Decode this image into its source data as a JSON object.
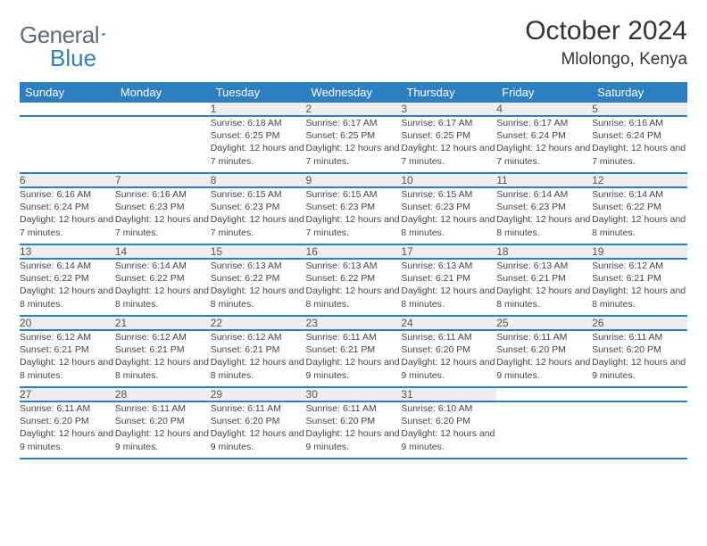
{
  "logo": {
    "text_a": "General",
    "text_b": "Blue",
    "tri_color": "#2d7fc1",
    "text_a_color": "#5d6b74"
  },
  "header": {
    "month_year": "October 2024",
    "location": "Mlolongo, Kenya"
  },
  "style": {
    "header_bg": "#2d7fc1",
    "header_text": "#ffffff",
    "daynum_bg": "#eceef0",
    "body_text": "#444444",
    "rule_color": "#2d7fc1",
    "page_bg": "#ffffff",
    "title_fontsize": 30,
    "loc_fontsize": 19,
    "dayhead_fontsize": 13,
    "cell_fontsize": 10.5
  },
  "weekdays": [
    "Sunday",
    "Monday",
    "Tuesday",
    "Wednesday",
    "Thursday",
    "Friday",
    "Saturday"
  ],
  "weeks": [
    {
      "nums": [
        "",
        "",
        "1",
        "2",
        "3",
        "4",
        "5"
      ],
      "cells": [
        null,
        null,
        {
          "sunrise": "6:18 AM",
          "sunset": "6:25 PM",
          "daylight": "12 hours and 7 minutes."
        },
        {
          "sunrise": "6:17 AM",
          "sunset": "6:25 PM",
          "daylight": "12 hours and 7 minutes."
        },
        {
          "sunrise": "6:17 AM",
          "sunset": "6:25 PM",
          "daylight": "12 hours and 7 minutes."
        },
        {
          "sunrise": "6:17 AM",
          "sunset": "6:24 PM",
          "daylight": "12 hours and 7 minutes."
        },
        {
          "sunrise": "6:16 AM",
          "sunset": "6:24 PM",
          "daylight": "12 hours and 7 minutes."
        }
      ]
    },
    {
      "nums": [
        "6",
        "7",
        "8",
        "9",
        "10",
        "11",
        "12"
      ],
      "cells": [
        {
          "sunrise": "6:16 AM",
          "sunset": "6:24 PM",
          "daylight": "12 hours and 7 minutes."
        },
        {
          "sunrise": "6:16 AM",
          "sunset": "6:23 PM",
          "daylight": "12 hours and 7 minutes."
        },
        {
          "sunrise": "6:15 AM",
          "sunset": "6:23 PM",
          "daylight": "12 hours and 7 minutes."
        },
        {
          "sunrise": "6:15 AM",
          "sunset": "6:23 PM",
          "daylight": "12 hours and 7 minutes."
        },
        {
          "sunrise": "6:15 AM",
          "sunset": "6:23 PM",
          "daylight": "12 hours and 8 minutes."
        },
        {
          "sunrise": "6:14 AM",
          "sunset": "6:23 PM",
          "daylight": "12 hours and 8 minutes."
        },
        {
          "sunrise": "6:14 AM",
          "sunset": "6:22 PM",
          "daylight": "12 hours and 8 minutes."
        }
      ]
    },
    {
      "nums": [
        "13",
        "14",
        "15",
        "16",
        "17",
        "18",
        "19"
      ],
      "cells": [
        {
          "sunrise": "6:14 AM",
          "sunset": "6:22 PM",
          "daylight": "12 hours and 8 minutes."
        },
        {
          "sunrise": "6:14 AM",
          "sunset": "6:22 PM",
          "daylight": "12 hours and 8 minutes."
        },
        {
          "sunrise": "6:13 AM",
          "sunset": "6:22 PM",
          "daylight": "12 hours and 8 minutes."
        },
        {
          "sunrise": "6:13 AM",
          "sunset": "6:22 PM",
          "daylight": "12 hours and 8 minutes."
        },
        {
          "sunrise": "6:13 AM",
          "sunset": "6:21 PM",
          "daylight": "12 hours and 8 minutes."
        },
        {
          "sunrise": "6:13 AM",
          "sunset": "6:21 PM",
          "daylight": "12 hours and 8 minutes."
        },
        {
          "sunrise": "6:12 AM",
          "sunset": "6:21 PM",
          "daylight": "12 hours and 8 minutes."
        }
      ]
    },
    {
      "nums": [
        "20",
        "21",
        "22",
        "23",
        "24",
        "25",
        "26"
      ],
      "cells": [
        {
          "sunrise": "6:12 AM",
          "sunset": "6:21 PM",
          "daylight": "12 hours and 8 minutes."
        },
        {
          "sunrise": "6:12 AM",
          "sunset": "6:21 PM",
          "daylight": "12 hours and 8 minutes."
        },
        {
          "sunrise": "6:12 AM",
          "sunset": "6:21 PM",
          "daylight": "12 hours and 8 minutes."
        },
        {
          "sunrise": "6:11 AM",
          "sunset": "6:21 PM",
          "daylight": "12 hours and 9 minutes."
        },
        {
          "sunrise": "6:11 AM",
          "sunset": "6:20 PM",
          "daylight": "12 hours and 9 minutes."
        },
        {
          "sunrise": "6:11 AM",
          "sunset": "6:20 PM",
          "daylight": "12 hours and 9 minutes."
        },
        {
          "sunrise": "6:11 AM",
          "sunset": "6:20 PM",
          "daylight": "12 hours and 9 minutes."
        }
      ]
    },
    {
      "nums": [
        "27",
        "28",
        "29",
        "30",
        "31",
        "",
        ""
      ],
      "cells": [
        {
          "sunrise": "6:11 AM",
          "sunset": "6:20 PM",
          "daylight": "12 hours and 9 minutes."
        },
        {
          "sunrise": "6:11 AM",
          "sunset": "6:20 PM",
          "daylight": "12 hours and 9 minutes."
        },
        {
          "sunrise": "6:11 AM",
          "sunset": "6:20 PM",
          "daylight": "12 hours and 9 minutes."
        },
        {
          "sunrise": "6:11 AM",
          "sunset": "6:20 PM",
          "daylight": "12 hours and 9 minutes."
        },
        {
          "sunrise": "6:10 AM",
          "sunset": "6:20 PM",
          "daylight": "12 hours and 9 minutes."
        },
        null,
        null
      ]
    }
  ],
  "labels": {
    "sunrise": "Sunrise:",
    "sunset": "Sunset:",
    "daylight": "Daylight:"
  }
}
